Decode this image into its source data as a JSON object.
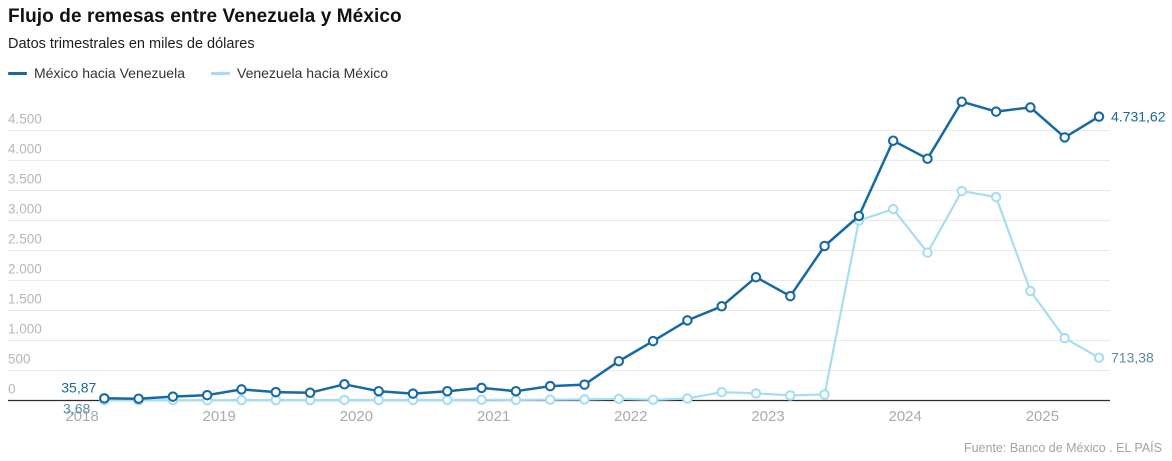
{
  "header": {
    "title": "Flujo de remesas entre Venezuela y México",
    "subtitle": "Datos trimestrales en miles de dólares"
  },
  "legend": [
    {
      "label": "México hacia Venezuela",
      "color": "#1769a3"
    },
    {
      "label": "Venezuela hacia México",
      "color": "#a7ddf3"
    }
  ],
  "footer": {
    "source": "Fuente: Banco de México . EL PAÍS"
  },
  "colors": {
    "series_dark": "#1769a3",
    "series_light": "#a7ddf3",
    "annotation_dark": "#1769a3",
    "annotation_light": "#5d89a5",
    "gridline": "#e9e9e9",
    "zero_line": "#2b2b2b",
    "y_tick_label": "#b5b8bb",
    "x_tick_label": "#a8abad"
  },
  "chart_data": {
    "type": "line",
    "title": "Flujo de remesas entre Venezuela y México",
    "subtitle": "Datos trimestrales en miles de dólares",
    "xlabel": "",
    "ylabel": "miles de dólares",
    "grid": "horizontal",
    "legend_position": "top-left",
    "ylim": [
      0,
      5000
    ],
    "yticks": [
      0,
      500,
      1000,
      1500,
      2000,
      2500,
      3000,
      3500,
      4000,
      4500
    ],
    "ytick_labels": [
      "0",
      "500",
      "1.000",
      "1.500",
      "2.000",
      "2.500",
      "3.000",
      "3.500",
      "4.000",
      "4.500"
    ],
    "year_ticks": [
      "2018",
      "2019",
      "2020",
      "2021",
      "2022",
      "2023",
      "2024",
      "2025"
    ],
    "categories": [
      "2018-T1",
      "2018-T2",
      "2018-T3",
      "2018-T4",
      "2019-T1",
      "2019-T2",
      "2019-T3",
      "2019-T4",
      "2020-T1",
      "2020-T2",
      "2020-T3",
      "2020-T4",
      "2021-T1",
      "2021-T2",
      "2021-T3",
      "2021-T4",
      "2022-T1",
      "2022-T2",
      "2022-T3",
      "2022-T4",
      "2023-T1",
      "2023-T2",
      "2023-T3",
      "2023-T4",
      "2024-T1",
      "2024-T2",
      "2024-T3",
      "2024-T4",
      "2025-T1",
      "2025-T2"
    ],
    "series": [
      {
        "name": "México hacia Venezuela",
        "color": "#1769a3",
        "label_color": "#1769a3",
        "values": [
          35.87,
          30,
          65,
          90,
          185,
          140,
          130,
          270,
          155,
          115,
          155,
          210,
          155,
          240,
          265,
          655,
          990,
          1335,
          1570,
          2055,
          1740,
          2575,
          3075,
          4330,
          4030,
          4980,
          4815,
          4885,
          4385,
          4731.62
        ]
      },
      {
        "name": "Venezuela hacia México",
        "color": "#a7ddf3",
        "label_color": "#5d89a5",
        "values": [
          3.68,
          4,
          5,
          5,
          6,
          6,
          7,
          9,
          8,
          8,
          9,
          12,
          10,
          14,
          18,
          28,
          12,
          33,
          140,
          118,
          85,
          100,
          3000,
          3190,
          2465,
          3490,
          3390,
          1825,
          1040,
          713.38
        ]
      }
    ],
    "annotations": [
      {
        "text": "35,87",
        "series": 0,
        "anchor": "first"
      },
      {
        "text": "3,68",
        "series": 1,
        "anchor": "first"
      },
      {
        "text": "4.731,62",
        "series": 0,
        "anchor": "last"
      },
      {
        "text": "713,38",
        "series": 1,
        "anchor": "last"
      }
    ]
  }
}
